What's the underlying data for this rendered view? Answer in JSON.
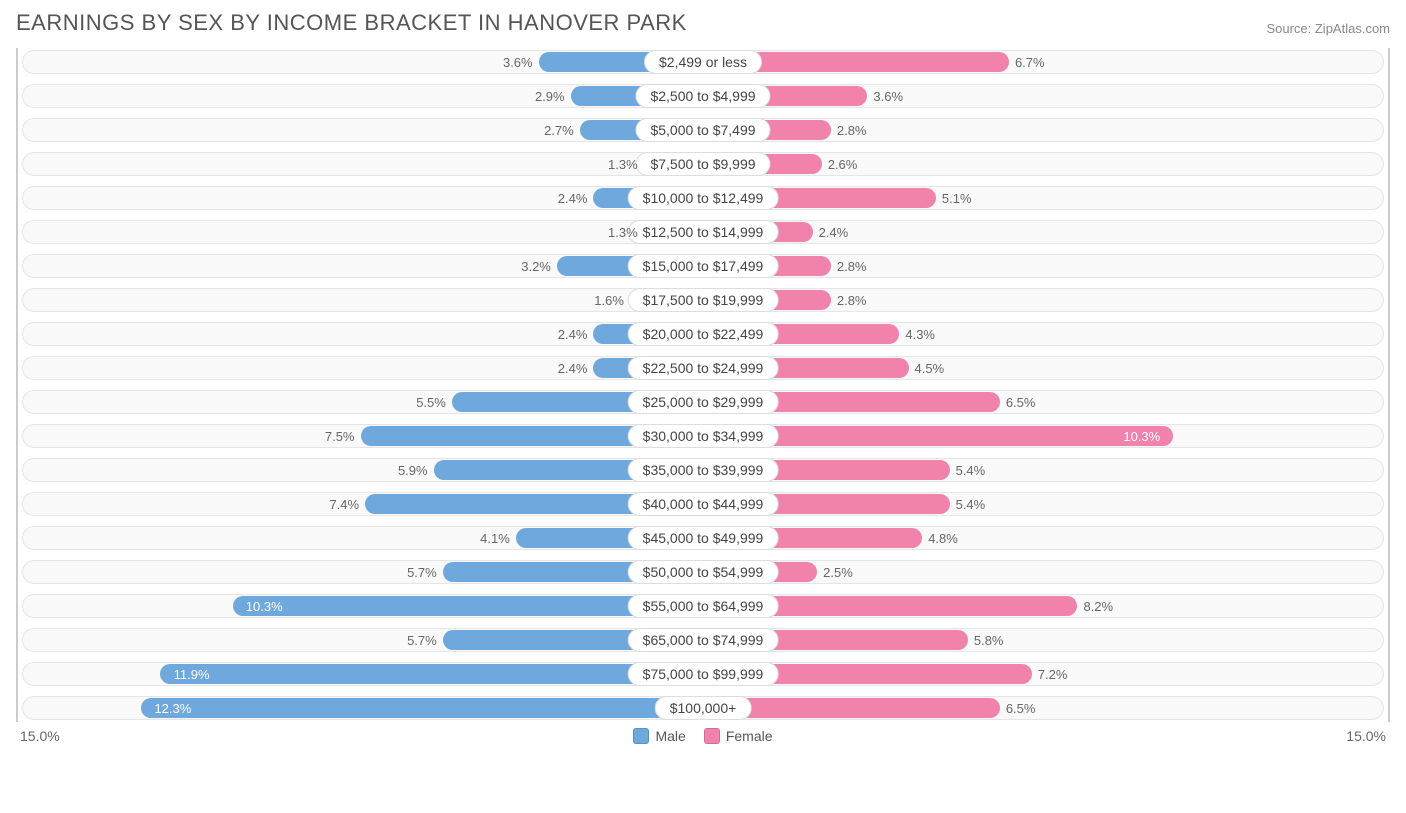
{
  "title": "EARNINGS BY SEX BY INCOME BRACKET IN HANOVER PARK",
  "source": "Source: ZipAtlas.com",
  "axis_max": 15.0,
  "axis_label_left": "15.0%",
  "axis_label_right": "15.0%",
  "colors": {
    "male": "#6fa8dc",
    "female": "#f082ac",
    "track_bg": "#f9f9f9",
    "track_border": "#e5e5e5",
    "text": "#666666",
    "title": "#555555"
  },
  "legend": {
    "male": "Male",
    "female": "Female"
  },
  "rows": [
    {
      "label": "$2,499 or less",
      "male": 3.6,
      "female": 6.7
    },
    {
      "label": "$2,500 to $4,999",
      "male": 2.9,
      "female": 3.6
    },
    {
      "label": "$5,000 to $7,499",
      "male": 2.7,
      "female": 2.8
    },
    {
      "label": "$7,500 to $9,999",
      "male": 1.3,
      "female": 2.6
    },
    {
      "label": "$10,000 to $12,499",
      "male": 2.4,
      "female": 5.1
    },
    {
      "label": "$12,500 to $14,999",
      "male": 1.3,
      "female": 2.4
    },
    {
      "label": "$15,000 to $17,499",
      "male": 3.2,
      "female": 2.8
    },
    {
      "label": "$17,500 to $19,999",
      "male": 1.6,
      "female": 2.8
    },
    {
      "label": "$20,000 to $22,499",
      "male": 2.4,
      "female": 4.3
    },
    {
      "label": "$22,500 to $24,999",
      "male": 2.4,
      "female": 4.5
    },
    {
      "label": "$25,000 to $29,999",
      "male": 5.5,
      "female": 6.5
    },
    {
      "label": "$30,000 to $34,999",
      "male": 7.5,
      "female": 10.3
    },
    {
      "label": "$35,000 to $39,999",
      "male": 5.9,
      "female": 5.4
    },
    {
      "label": "$40,000 to $44,999",
      "male": 7.4,
      "female": 5.4
    },
    {
      "label": "$45,000 to $49,999",
      "male": 4.1,
      "female": 4.8
    },
    {
      "label": "$50,000 to $54,999",
      "male": 5.7,
      "female": 2.5
    },
    {
      "label": "$55,000 to $64,999",
      "male": 10.3,
      "female": 8.2
    },
    {
      "label": "$65,000 to $74,999",
      "male": 5.7,
      "female": 5.8
    },
    {
      "label": "$75,000 to $99,999",
      "male": 11.9,
      "female": 7.2
    },
    {
      "label": "$100,000+",
      "male": 12.3,
      "female": 6.5
    }
  ]
}
